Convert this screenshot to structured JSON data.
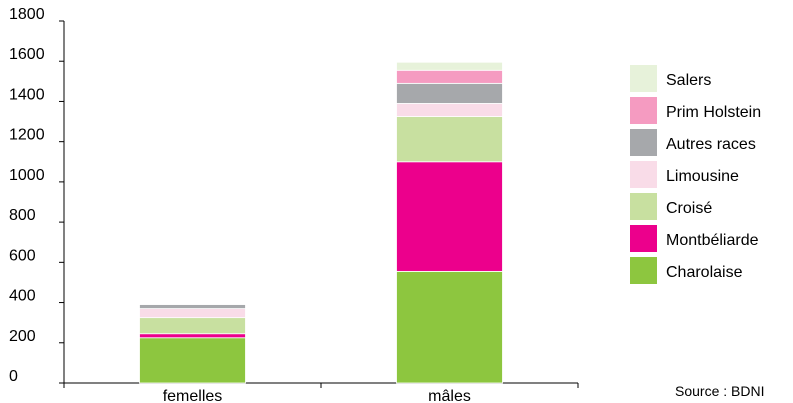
{
  "chart_data": {
    "type": "bar",
    "stacked": true,
    "categories": [
      "femelles",
      "mâles"
    ],
    "ylim": [
      0,
      1800
    ],
    "yticks": [
      0,
      200,
      400,
      600,
      800,
      1000,
      1200,
      1400,
      1600,
      1800
    ],
    "grid": false,
    "legend_position": "right",
    "series": [
      {
        "name": "Charolaise",
        "color": "#8dc63f",
        "values": [
          225,
          555
        ]
      },
      {
        "name": "Montbéliarde",
        "color": "#ec008c",
        "values": [
          20,
          545
        ]
      },
      {
        "name": "Croisé",
        "color": "#c8e0a0",
        "values": [
          80,
          225
        ]
      },
      {
        "name": "Limousine",
        "color": "#f9dce8",
        "values": [
          45,
          65
        ]
      },
      {
        "name": "Autres races",
        "color": "#a6a8ab",
        "values": [
          20,
          100
        ]
      },
      {
        "name": "Prim Holstein",
        "color": "#f59bc1",
        "values": [
          0,
          65
        ]
      },
      {
        "name": "Salers",
        "color": "#e7f2da",
        "values": [
          0,
          40
        ]
      }
    ],
    "source": "Source : BDNI"
  }
}
